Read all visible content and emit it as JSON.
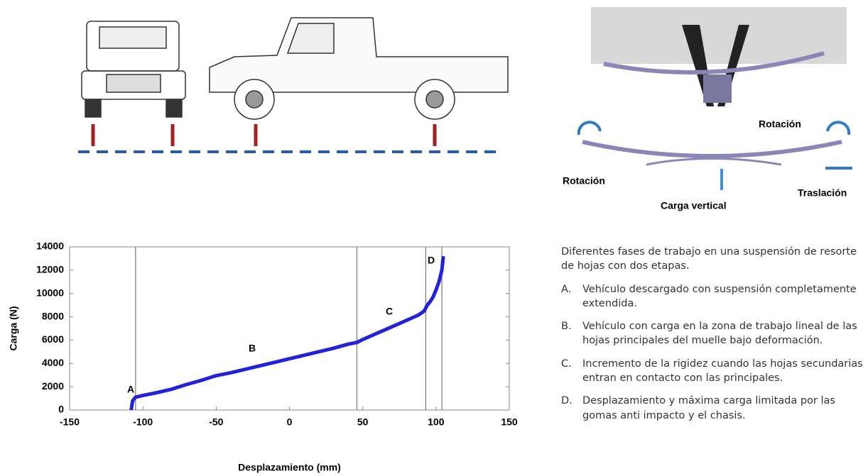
{
  "chart_data": {
    "type": "line",
    "x_label": "Desplazamiento (mm)",
    "y_label": "Carga (N)",
    "xlim": [
      -150,
      150
    ],
    "xticks": [
      -150,
      -100,
      -50,
      0,
      50,
      100,
      150
    ],
    "ylim": [
      0,
      14000
    ],
    "yticks": [
      0,
      2000,
      4000,
      6000,
      8000,
      10000,
      12000,
      14000
    ],
    "vlines": [
      -105,
      46,
      93,
      104
    ],
    "annotations": [
      "A",
      "B",
      "C",
      "D"
    ],
    "series": [
      {
        "name": "Carga",
        "color": "#2222dd",
        "x": [
          -108,
          -107,
          -105,
          -100,
          -90,
          -80,
          -70,
          -60,
          -50,
          -40,
          -30,
          -20,
          -10,
          0,
          10,
          20,
          30,
          40,
          46,
          50,
          60,
          70,
          80,
          88,
          92,
          94,
          96,
          98,
          100,
          102,
          104,
          105
        ],
        "values": [
          0,
          800,
          1100,
          1250,
          1500,
          1800,
          2200,
          2550,
          2950,
          3200,
          3500,
          3800,
          4100,
          4400,
          4700,
          5000,
          5300,
          5650,
          5800,
          6050,
          6600,
          7150,
          7700,
          8150,
          8500,
          9000,
          9300,
          9700,
          10300,
          11000,
          12000,
          13200
        ]
      }
    ]
  },
  "suspension_labels": {
    "rotation_right": "Rotación",
    "rotation_left": "Rotación",
    "translation": "Traslación",
    "vertical_load": "Carga vertical"
  },
  "description": {
    "intro": "Diferentes fases de trabajo en una suspensión de resorte de hojas con dos etapas.",
    "items": [
      {
        "marker": "A.",
        "text": "Vehículo descargado con suspensión completamente extendida."
      },
      {
        "marker": "B.",
        "text": "Vehículo con carga en la zona de trabajo lineal de las hojas principales del muelle bajo deformación."
      },
      {
        "marker": "C.",
        "text": "Incremento de la rigidez cuando las hojas secundarias entran en contacto con las principales."
      },
      {
        "marker": "D.",
        "text": "Desplazamiento y máxima carga limitada por las gomas anti impacto y el chasis."
      }
    ]
  }
}
